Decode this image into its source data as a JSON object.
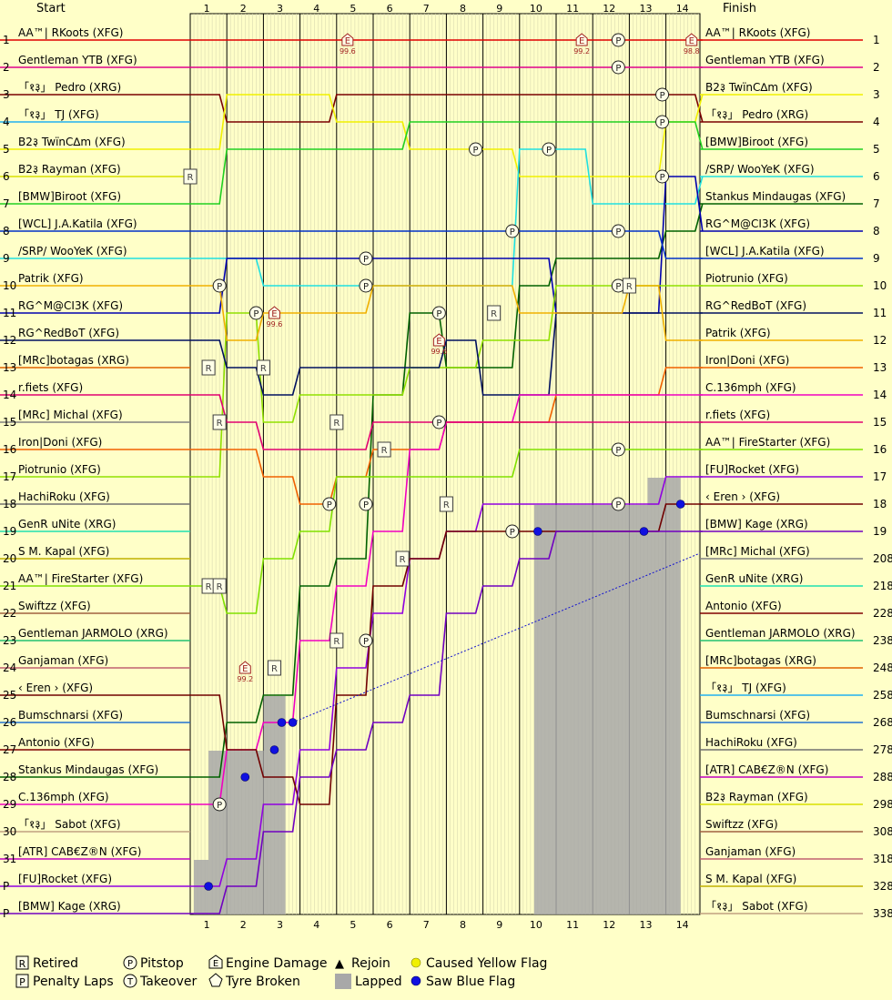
{
  "headers": {
    "start": "Start",
    "finish": "Finish"
  },
  "chart_data": {
    "type": "line",
    "title": "",
    "xlabel": "",
    "ylabel": "",
    "laps": [
      "1",
      "2",
      "3",
      "4",
      "5",
      "6",
      "7",
      "8",
      "9",
      "10",
      "11",
      "12",
      "13",
      "14"
    ],
    "start_positions": [
      "1",
      "2",
      "3",
      "4",
      "5",
      "6",
      "7",
      "8",
      "9",
      "10",
      "11",
      "12",
      "13",
      "14",
      "15",
      "16",
      "17",
      "18",
      "19",
      "20",
      "21",
      "22",
      "23",
      "24",
      "25",
      "26",
      "27",
      "28",
      "29",
      "30",
      "31",
      "P",
      "P"
    ],
    "finish_positions": [
      "1",
      "2",
      "3",
      "4",
      "5",
      "6",
      "7",
      "8",
      "9",
      "10",
      "11",
      "12",
      "13",
      "14",
      "15",
      "16",
      "17",
      "18",
      "19",
      "208",
      "218",
      "228",
      "238",
      "248",
      "258",
      "268",
      "278",
      "288",
      "298",
      "308",
      "318",
      "328",
      "338"
    ],
    "start_grid": [
      {
        "name": "AA™| RKoots (XFG)",
        "color": "#E00000"
      },
      {
        "name": "Gentleman YTB (XFG)",
        "color": "#E0008C"
      },
      {
        "name": "「१३」 Pedro (XRG)",
        "color": "#7A0000"
      },
      {
        "name": "「१३」  TJ (XFG)",
        "color": "#20B0F0"
      },
      {
        "name": "B2३ TwïnC∆m (XFG)",
        "color": "#F0F000"
      },
      {
        "name": "B2३ Rayman (XFG)",
        "color": "#D8E000"
      },
      {
        "name": "[BMW]Biroot (XFG)",
        "color": "#20D020"
      },
      {
        "name": "[WCL] J.A.Katila (XFG)",
        "color": "#0030C8"
      },
      {
        "name": "/SRP/ WooYeK (XFG)",
        "color": "#20E0E0"
      },
      {
        "name": "Patrik (XFG)",
        "color": "#F0B000"
      },
      {
        "name": "RG^M@CI3K (XFG)",
        "color": "#0000B0"
      },
      {
        "name": "RG^RedBoT (XFG)",
        "color": "#001060"
      },
      {
        "name": "[MRc]botagas (XRG)",
        "color": "#E06000"
      },
      {
        "name": "r.fiets (XFG)",
        "color": "#E00070"
      },
      {
        "name": "[MRc] Michal (XFG)",
        "color": "#808080"
      },
      {
        "name": "Iron|Doni (XFG)",
        "color": "#F06000"
      },
      {
        "name": "Piotrunio (XFG)",
        "color": "#90E000"
      },
      {
        "name": "HachiRoku (XFG)",
        "color": "#707070"
      },
      {
        "name": "GenR uNite (XRG)",
        "color": "#20E0B0"
      },
      {
        "name": "S M. Kapal (XFG)",
        "color": "#C0B000"
      },
      {
        "name": "AA™| FireStarter (XFG)",
        "color": "#80E000"
      },
      {
        "name": "Swiftzz (XFG)",
        "color": "#A06040"
      },
      {
        "name": "Gentleman JARMOLO (XRG)",
        "color": "#20C070"
      },
      {
        "name": "Ganjaman (XFG)",
        "color": "#C06070"
      },
      {
        "name": "‹ Eren › (XFG)",
        "color": "#700000"
      },
      {
        "name": "Bumschnarsi (XFG)",
        "color": "#2070D0"
      },
      {
        "name": "Antonio (XFG)",
        "color": "#800000"
      },
      {
        "name": "Stankus Mindaugas (XFG)",
        "color": "#006000"
      },
      {
        "name": "C.136mph (XFG)",
        "color": "#F000C0"
      },
      {
        "name": "「१३」 Sabot (XFG)",
        "color": "#C0A080"
      },
      {
        "name": "[ATR] CAB€Z®N (XFG)",
        "color": "#C000C0"
      },
      {
        "name": "[FU]Rocket (XFG)",
        "color": "#9000E0"
      },
      {
        "name": "[BMW] Kage (XRG)",
        "color": "#7000C0"
      }
    ],
    "finish_order": [
      "AA™| RKoots (XFG)",
      "Gentleman YTB (XFG)",
      "B2३ TwïnC∆m (XFG)",
      "「१३」 Pedro (XRG)",
      "[BMW]Biroot (XFG)",
      "/SRP/ WooYeK (XFG)",
      "Stankus Mindaugas (XFG)",
      "RG^M@CI3K (XFG)",
      "[WCL] J.A.Katila (XFG)",
      "Piotrunio (XFG)",
      "RG^RedBoT (XFG)",
      "Patrik (XFG)",
      "Iron|Doni (XFG)",
      "C.136mph (XFG)",
      "r.fiets (XFG)",
      "AA™| FireStarter (XFG)",
      "[FU]Rocket (XFG)",
      "‹ Eren › (XFG)",
      "[BMW] Kage (XRG)",
      "[MRc] Michal (XFG)",
      "GenR uNite (XRG)",
      "Antonio (XFG)",
      "Gentleman JARMOLO (XRG)",
      "[MRc]botagas (XRG)",
      "「१३」  TJ (XFG)",
      "Bumschnarsi (XFG)",
      "HachiRoku (XFG)",
      "[ATR] CAB€Z®N (XFG)",
      "B2३ Rayman (XFG)",
      "Swiftzz (XFG)",
      "Ganjaman (XFG)",
      "S M. Kapal (XFG)",
      "「१३」 Sabot (XFG)"
    ],
    "finish_colors": [
      "#E00000",
      "#E0008C",
      "#F0F000",
      "#7A0000",
      "#20D020",
      "#20E0E0",
      "#006000",
      "#0000B0",
      "#0030C8",
      "#90E000",
      "#001060",
      "#F0B000",
      "#F06000",
      "#F000C0",
      "#E00070",
      "#80E000",
      "#9000E0",
      "#700000",
      "#7000C0",
      "#808080",
      "#20E0B0",
      "#800000",
      "#20C070",
      "#E06000",
      "#20B0F0",
      "#2070D0",
      "#707070",
      "#C000C0",
      "#D8E000",
      "#A06040",
      "#C06070",
      "#C0B000",
      "#C0A080"
    ],
    "lapped_bars": [
      {
        "from": 0.1,
        "to": 0.5,
        "positions_lapped": 2
      },
      {
        "from": 0.5,
        "to": 2.0,
        "positions_lapped": 6
      },
      {
        "from": 2.0,
        "to": 2.6,
        "positions_lapped": 8
      },
      {
        "from": 9.4,
        "to": 12.5,
        "positions_lapped": 15
      },
      {
        "from": 12.5,
        "to": 13.4,
        "positions_lapped": 16
      }
    ],
    "traces": [
      {
        "color": "#E00000",
        "pos": [
          1,
          1,
          1,
          1,
          1,
          1,
          1,
          1,
          1,
          1,
          1,
          1,
          1,
          1,
          1
        ]
      },
      {
        "color": "#E0008C",
        "pos": [
          2,
          2,
          2,
          2,
          2,
          2,
          2,
          2,
          2,
          2,
          2,
          2,
          2,
          2,
          2
        ]
      },
      {
        "color": "#7A0000",
        "pos": [
          3,
          4,
          4,
          4,
          3,
          3,
          3,
          3,
          3,
          3,
          3,
          3,
          3,
          3,
          4
        ]
      },
      {
        "color": "#F0F000",
        "pos": [
          5,
          3,
          3,
          3,
          4,
          4,
          5,
          5,
          5,
          6,
          6,
          6,
          6,
          4,
          3
        ]
      },
      {
        "color": "#20D020",
        "pos": [
          7,
          5,
          5,
          5,
          5,
          5,
          4,
          4,
          4,
          4,
          4,
          4,
          4,
          4,
          5
        ]
      },
      {
        "color": "#20E0E0",
        "pos": [
          9,
          9,
          10,
          10,
          10,
          10,
          10,
          10,
          10,
          5,
          5,
          7,
          7,
          7,
          6
        ]
      },
      {
        "color": "#006000",
        "pos": [
          28,
          26,
          25,
          21,
          20,
          14,
          11,
          13,
          13,
          10,
          9,
          9,
          9,
          8,
          7
        ]
      },
      {
        "color": "#0000B0",
        "pos": [
          11,
          9,
          9,
          9,
          9,
          9,
          9,
          9,
          9,
          9,
          11,
          11,
          11,
          6,
          8
        ]
      },
      {
        "color": "#0030C8",
        "pos": [
          8,
          8,
          8,
          8,
          8,
          8,
          8,
          8,
          8,
          8,
          8,
          8,
          8,
          9,
          9
        ]
      },
      {
        "color": "#90E000",
        "pos": [
          17,
          11,
          15,
          14,
          14,
          14,
          13,
          13,
          12,
          12,
          10,
          10,
          10,
          10,
          10
        ]
      },
      {
        "color": "#001060",
        "pos": [
          12,
          13,
          14,
          13,
          13,
          13,
          13,
          12,
          14,
          14,
          11,
          11,
          11,
          11,
          11
        ]
      },
      {
        "color": "#F0B000",
        "pos": [
          10,
          12,
          11,
          11,
          11,
          10,
          10,
          10,
          10,
          11,
          11,
          11,
          10,
          12,
          12
        ]
      },
      {
        "color": "#F06000",
        "pos": [
          16,
          16,
          17,
          18,
          17,
          16,
          16,
          15,
          15,
          15,
          14,
          14,
          14,
          13,
          13
        ]
      },
      {
        "color": "#F000C0",
        "pos": [
          29,
          27,
          26,
          23,
          21,
          19,
          16,
          15,
          15,
          14,
          14,
          14,
          14,
          14,
          14
        ]
      },
      {
        "color": "#E00070",
        "pos": [
          14,
          15,
          16,
          16,
          16,
          15,
          15,
          15,
          15,
          15,
          15,
          15,
          15,
          15,
          15
        ]
      },
      {
        "color": "#80E000",
        "pos": [
          21,
          22,
          20,
          19,
          17,
          17,
          17,
          17,
          17,
          16,
          16,
          16,
          16,
          16,
          16
        ]
      },
      {
        "color": "#9000E0",
        "pos": [
          32,
          31,
          29,
          27,
          24,
          22,
          20,
          19,
          18,
          18,
          18,
          18,
          18,
          17,
          17
        ]
      },
      {
        "color": "#700000",
        "pos": [
          25,
          27,
          28,
          29,
          25,
          21,
          20,
          19,
          19,
          19,
          19,
          19,
          19,
          18,
          18
        ]
      },
      {
        "color": "#7000C0",
        "pos": [
          33,
          32,
          30,
          28,
          27,
          26,
          25,
          22,
          21,
          20,
          19,
          19,
          19,
          19,
          19
        ]
      }
    ],
    "legend": [
      {
        "symbol": "R",
        "label": "Retired"
      },
      {
        "symbol": "P",
        "label": "Penalty Laps"
      },
      {
        "symbol": "P",
        "label": "Pitstop"
      },
      {
        "symbol": "T",
        "label": "Takeover"
      },
      {
        "symbol": "E",
        "label": "Engine Damage"
      },
      {
        "symbol": "tyre",
        "label": "Tyre Broken"
      },
      {
        "symbol": "▲",
        "label": "Rejoin"
      },
      {
        "symbol": "lapped",
        "label": "Lapped"
      },
      {
        "symbol": "yellow",
        "label": "Caused Yellow Flag"
      },
      {
        "symbol": "blue",
        "label": "Saw Blue Flag"
      }
    ],
    "event_markers": [
      {
        "type": "E",
        "lap": 4.3,
        "pos": 1,
        "label": "99.6"
      },
      {
        "type": "E",
        "lap": 10.7,
        "pos": 1,
        "label": "99.2"
      },
      {
        "type": "E",
        "lap": 13.7,
        "pos": 1,
        "label": "98.8"
      },
      {
        "type": "P",
        "lap": 11.7,
        "pos": 1
      },
      {
        "type": "P",
        "lap": 11.7,
        "pos": 2
      },
      {
        "type": "P",
        "lap": 12.9,
        "pos": 3
      },
      {
        "type": "P",
        "lap": 12.9,
        "pos": 4
      },
      {
        "type": "P",
        "lap": 7.8,
        "pos": 5
      },
      {
        "type": "P",
        "lap": 9.8,
        "pos": 5
      },
      {
        "type": "P",
        "lap": 12.9,
        "pos": 6
      },
      {
        "type": "R",
        "lap": 0.0,
        "pos": 6
      },
      {
        "type": "P",
        "lap": 8.8,
        "pos": 8
      },
      {
        "type": "P",
        "lap": 11.7,
        "pos": 8
      },
      {
        "type": "P",
        "lap": 4.8,
        "pos": 9
      },
      {
        "type": "P",
        "lap": 0.8,
        "pos": 10
      },
      {
        "type": "P",
        "lap": 4.8,
        "pos": 10
      },
      {
        "type": "P",
        "lap": 11.7,
        "pos": 10
      },
      {
        "type": "R",
        "lap": 12.0,
        "pos": 10
      },
      {
        "type": "P",
        "lap": 1.8,
        "pos": 11
      },
      {
        "type": "E",
        "lap": 2.3,
        "pos": 11,
        "label": "99.6"
      },
      {
        "type": "P",
        "lap": 6.8,
        "pos": 11
      },
      {
        "type": "R",
        "lap": 8.3,
        "pos": 11
      },
      {
        "type": "E",
        "lap": 6.8,
        "pos": 12,
        "label": "99.6"
      },
      {
        "type": "R",
        "lap": 0.5,
        "pos": 13
      },
      {
        "type": "R",
        "lap": 2.0,
        "pos": 13
      },
      {
        "type": "R",
        "lap": 0.8,
        "pos": 15
      },
      {
        "type": "R",
        "lap": 4.0,
        "pos": 15
      },
      {
        "type": "P",
        "lap": 6.8,
        "pos": 15
      },
      {
        "type": "R",
        "lap": 5.3,
        "pos": 16
      },
      {
        "type": "P",
        "lap": 11.7,
        "pos": 16
      },
      {
        "type": "P",
        "lap": 3.8,
        "pos": 18
      },
      {
        "type": "P",
        "lap": 4.8,
        "pos": 18
      },
      {
        "type": "R",
        "lap": 7.0,
        "pos": 18
      },
      {
        "type": "P",
        "lap": 11.7,
        "pos": 18
      },
      {
        "type": "P",
        "lap": 8.8,
        "pos": 19
      },
      {
        "type": "R",
        "lap": 5.8,
        "pos": 20
      },
      {
        "type": "R",
        "lap": 0.5,
        "pos": 21
      },
      {
        "type": "R",
        "lap": 0.8,
        "pos": 21
      },
      {
        "type": "R",
        "lap": 4.0,
        "pos": 23
      },
      {
        "type": "P",
        "lap": 4.8,
        "pos": 23
      },
      {
        "type": "E",
        "lap": 1.5,
        "pos": 24,
        "label": "99.2"
      },
      {
        "type": "R",
        "lap": 2.3,
        "pos": 24
      },
      {
        "type": "P",
        "lap": 0.8,
        "pos": 29
      }
    ],
    "blue_flags": [
      {
        "lap": 0.5,
        "pos": 32
      },
      {
        "lap": 1.5,
        "pos": 28
      },
      {
        "lap": 2.3,
        "pos": 27
      },
      {
        "lap": 2.5,
        "pos": 26
      },
      {
        "lap": 2.8,
        "pos": 26
      },
      {
        "lap": 9.5,
        "pos": 19
      },
      {
        "lap": 12.4,
        "pos": 19
      },
      {
        "lap": 13.4,
        "pos": 18
      }
    ]
  }
}
